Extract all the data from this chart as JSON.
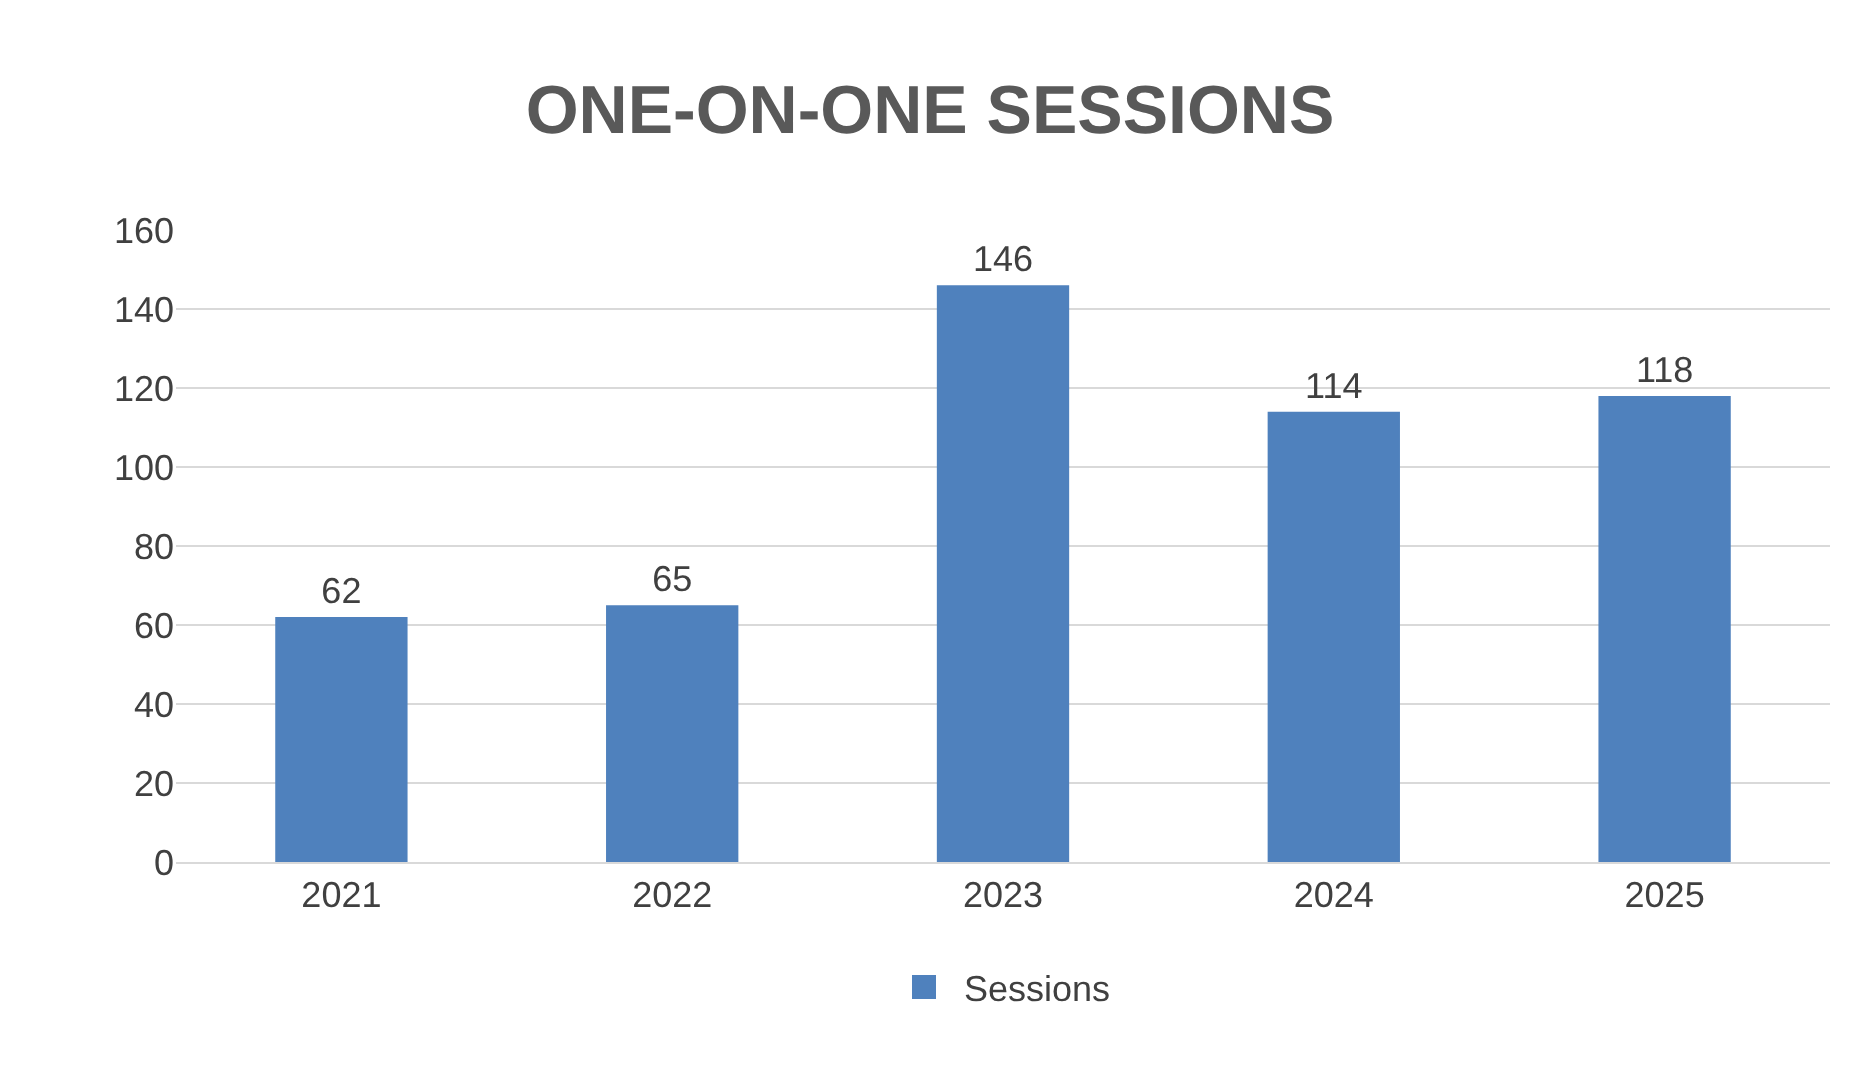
{
  "chart_data": {
    "type": "bar",
    "title": "ONE-ON-ONE SESSIONS",
    "categories": [
      "2021",
      "2022",
      "2023",
      "2024",
      "2025"
    ],
    "series": [
      {
        "name": "Sessions",
        "color": "#4f81bd",
        "values": [
          62,
          65,
          146,
          114,
          118
        ]
      }
    ],
    "ylim": [
      0,
      160
    ],
    "yticks": [
      0,
      20,
      40,
      60,
      80,
      100,
      120,
      140,
      160
    ],
    "grid": "y",
    "legend": "bottom",
    "data_labels": true
  }
}
